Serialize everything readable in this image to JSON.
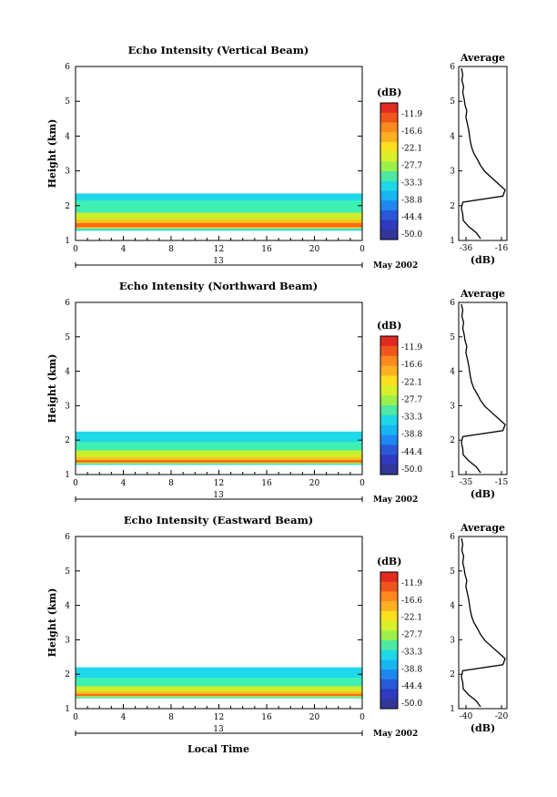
{
  "figure": {
    "xlabel": "Local Time"
  },
  "chart_data": [
    {
      "type": "heatmap",
      "title": "Echo Intensity (Vertical Beam)",
      "ylabel": "Height (km)",
      "xlim": [
        0,
        24
      ],
      "ylim": [
        1,
        6
      ],
      "x_ticks": [
        "0",
        "4",
        "8",
        "12",
        "16",
        "20",
        "0"
      ],
      "y_ticks": [
        "1",
        "2",
        "3",
        "4",
        "5",
        "6"
      ],
      "date_day": "13",
      "date_month": "May 2002",
      "colorbar": {
        "unit": "(dB)",
        "labels": [
          "-11.9",
          "-16.6",
          "-22.1",
          "-27.7",
          "-33.3",
          "-38.8",
          "-44.4",
          "-50.0"
        ]
      },
      "layers": [
        {
          "level": 0,
          "x": [
            0,
            24
          ],
          "bottom": [
            1.28,
            1.28
          ],
          "top": [
            2.35,
            2.35
          ]
        },
        {
          "level": 1,
          "x": [
            0,
            24
          ],
          "bottom": [
            1.32,
            1.32
          ],
          "top": [
            2.15,
            2.15
          ]
        },
        {
          "level": 3,
          "x": [
            0,
            24
          ],
          "bottom": [
            1.34,
            1.34
          ],
          "top": [
            1.8,
            1.8
          ]
        },
        {
          "level": 5,
          "x": [
            0,
            24
          ],
          "bottom": [
            1.36,
            1.36
          ],
          "top": [
            1.6,
            1.6
          ]
        },
        {
          "level": 7,
          "x": [
            0,
            24
          ],
          "bottom": [
            1.38,
            1.38
          ],
          "top": [
            1.5,
            1.5
          ]
        }
      ],
      "average": {
        "title": "Average",
        "xlabel": "(dB)",
        "x_ticks": [
          "-36",
          "-16"
        ],
        "y_ticks": [
          "1",
          "2",
          "3",
          "4",
          "5",
          "6"
        ]
      }
    },
    {
      "type": "heatmap",
      "title": "Echo Intensity (Northward Beam)",
      "ylabel": "Height (km)",
      "xlim": [
        0,
        24
      ],
      "ylim": [
        1,
        6
      ],
      "x_ticks": [
        "0",
        "4",
        "8",
        "12",
        "16",
        "20",
        "0"
      ],
      "y_ticks": [
        "1",
        "2",
        "3",
        "4",
        "5",
        "6"
      ],
      "date_day": "13",
      "date_month": "May 2002",
      "colorbar": {
        "unit": "(dB)",
        "labels": [
          "-11.9",
          "-16.6",
          "-22.1",
          "-27.7",
          "-33.3",
          "-38.8",
          "-44.4",
          "-50.0"
        ]
      },
      "layers": [
        {
          "level": 0,
          "x": [
            0,
            24
          ],
          "bottom": [
            1.28,
            1.28
          ],
          "top": [
            2.25,
            2.25
          ]
        },
        {
          "level": 1,
          "x": [
            0,
            24
          ],
          "bottom": [
            1.3,
            1.3
          ],
          "top": [
            1.95,
            1.95
          ]
        },
        {
          "level": 3,
          "x": [
            0,
            24
          ],
          "bottom": [
            1.32,
            1.32
          ],
          "top": [
            1.7,
            1.7
          ]
        },
        {
          "level": 5,
          "x": [
            0,
            24
          ],
          "bottom": [
            1.34,
            1.34
          ],
          "top": [
            1.5,
            1.5
          ]
        },
        {
          "level": 7,
          "x": [
            0,
            24
          ],
          "bottom": [
            1.35,
            1.35
          ],
          "top": [
            1.42,
            1.42
          ]
        }
      ],
      "average": {
        "title": "Average",
        "xlabel": "(dB)",
        "x_ticks": [
          "-35",
          "-15"
        ],
        "y_ticks": [
          "1",
          "2",
          "3",
          "4",
          "5",
          "6"
        ]
      }
    },
    {
      "type": "heatmap",
      "title": "Echo Intensity (Eastward Beam)",
      "ylabel": "Height (km)",
      "xlim": [
        0,
        24
      ],
      "ylim": [
        1,
        6
      ],
      "x_ticks": [
        "0",
        "4",
        "8",
        "12",
        "16",
        "20",
        "0"
      ],
      "y_ticks": [
        "1",
        "2",
        "3",
        "4",
        "5",
        "6"
      ],
      "date_day": "13",
      "date_month": "May 2002",
      "colorbar": {
        "unit": "(dB)",
        "labels": [
          "-11.9",
          "-16.6",
          "-22.1",
          "-27.7",
          "-33.3",
          "-38.8",
          "-44.4",
          "-50.0"
        ]
      },
      "layers": [
        {
          "level": 0,
          "x": [
            0,
            24
          ],
          "bottom": [
            1.3,
            1.3
          ],
          "top": [
            2.2,
            2.2
          ]
        },
        {
          "level": 1,
          "x": [
            0,
            24
          ],
          "bottom": [
            1.32,
            1.32
          ],
          "top": [
            1.9,
            1.9
          ]
        },
        {
          "level": 3,
          "x": [
            0,
            24
          ],
          "bottom": [
            1.34,
            1.34
          ],
          "top": [
            1.65,
            1.65
          ]
        },
        {
          "level": 5,
          "x": [
            0,
            24
          ],
          "bottom": [
            1.36,
            1.36
          ],
          "top": [
            1.5,
            1.5
          ]
        },
        {
          "level": 7,
          "x": [
            0,
            24
          ],
          "bottom": [
            1.37,
            1.37
          ],
          "top": [
            1.43,
            1.43
          ]
        }
      ],
      "average": {
        "title": "Average",
        "xlabel": "(dB)",
        "x_ticks": [
          "-40",
          "-20"
        ],
        "y_ticks": [
          "1",
          "2",
          "3",
          "4",
          "5",
          "6"
        ]
      }
    }
  ]
}
